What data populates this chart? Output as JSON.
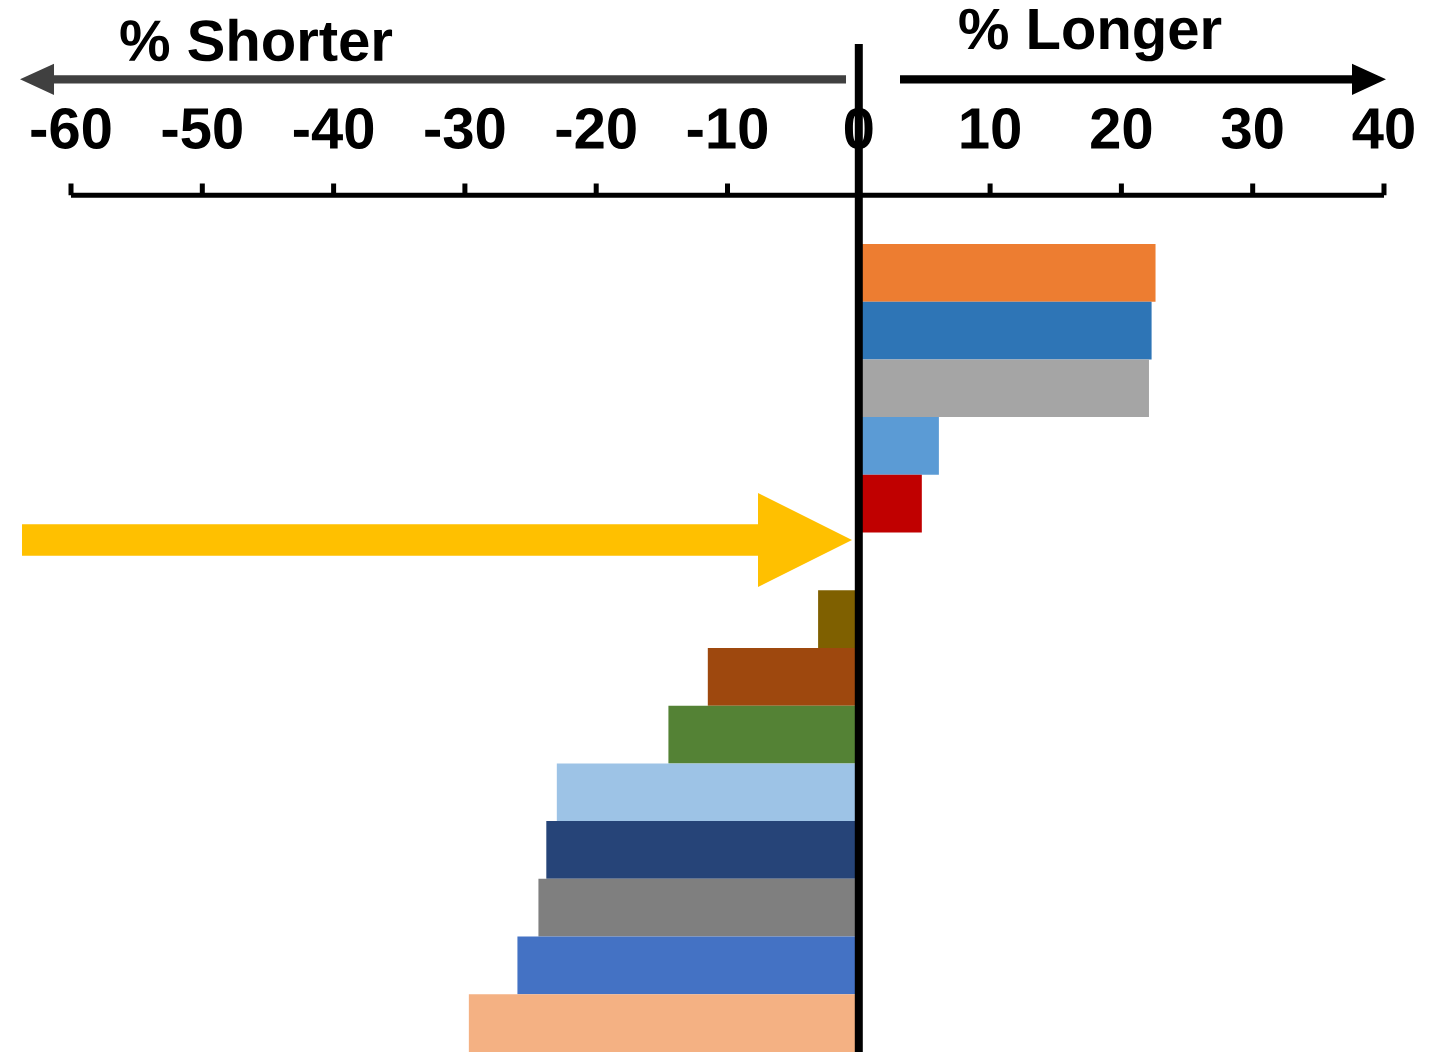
{
  "chart_data": {
    "type": "bar",
    "orientation": "horizontal",
    "categories": [
      null,
      null,
      null,
      null,
      null,
      null,
      null,
      null,
      null,
      null,
      null,
      null,
      null,
      null
    ],
    "values": [
      22.6,
      22.3,
      22.1,
      6.1,
      4.8,
      null,
      -3.1,
      -11.5,
      -14.5,
      -23.0,
      -23.8,
      -24.4,
      -26.0,
      -29.7
    ],
    "colors": [
      "#ed7d31",
      "#2e75b6",
      "#a5a5a5",
      "#5b9bd5",
      "#c00000",
      null,
      "#7f6000",
      "#9e480e",
      "#548235",
      "#9dc3e6",
      "#264478",
      "#7f7f7f",
      "#4472c4",
      "#f4b183"
    ],
    "xlim": [
      -60,
      40
    ],
    "xticks": [
      -60,
      -50,
      -40,
      -30,
      -20,
      -10,
      0,
      10,
      20,
      30,
      40
    ],
    "annotations": [
      "% Shorter",
      "% Longer"
    ]
  }
}
